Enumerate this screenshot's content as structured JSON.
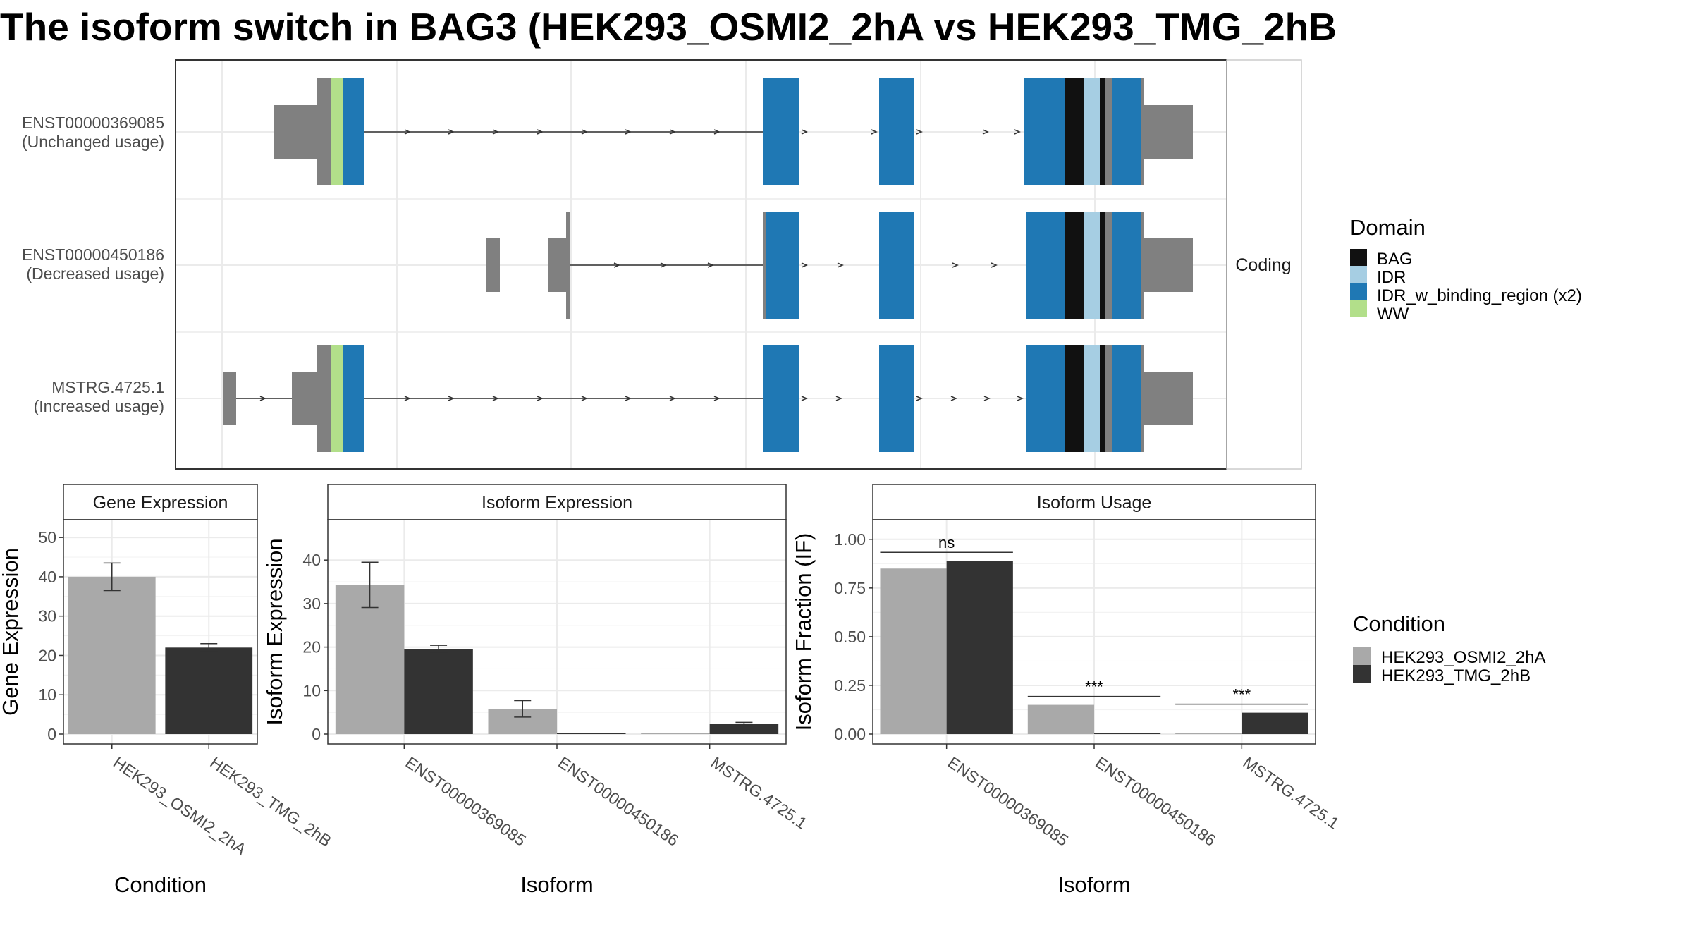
{
  "title": "The isoform switch in BAG3 (HEK293_OSMI2_2hA vs HEK293_TMG_2hB",
  "colors": {
    "BAG": "#111111",
    "IDR": "#a6cee3",
    "IDR_w_binding_region (x2)": "#1f78b4",
    "WW": "#b2df8a",
    "utr": "#808080",
    "HEK293_OSMI2_2hA": "#a9a9a9",
    "HEK293_TMG_2hB": "#333333"
  },
  "structure": {
    "strip_label": "Coding",
    "isoforms": [
      {
        "id": "ENST00000369085",
        "usage": "(Unchanged usage)"
      },
      {
        "id": "ENST00000450186",
        "usage": "(Decreased usage)"
      },
      {
        "id": "MSTRG.4725.1",
        "usage": "(Increased usage)"
      }
    ]
  },
  "legend_domain": {
    "title": "Domain",
    "items": [
      "BAG",
      "IDR",
      "IDR_w_binding_region (x2)",
      "WW"
    ]
  },
  "legend_condition": {
    "title": "Condition",
    "items": [
      "HEK293_OSMI2_2hA",
      "HEK293_TMG_2hB"
    ]
  },
  "chart_data": [
    {
      "type": "bar",
      "strip": "Gene Expression",
      "xlabel": "Condition",
      "ylabel": "Gene Expression",
      "ylim": [
        0,
        52
      ],
      "yticks": [
        0,
        10,
        20,
        30,
        40,
        50
      ],
      "categories": [
        "HEK293_OSMI2_2hA",
        "HEK293_TMG_2hB"
      ],
      "series": [
        {
          "name": "HEK293_OSMI2_2hA",
          "values": [
            40.0,
            null
          ],
          "errors": [
            3.5,
            null
          ]
        },
        {
          "name": "HEK293_TMG_2hB",
          "values": [
            null,
            22.0
          ],
          "errors": [
            null,
            1.0
          ]
        }
      ]
    },
    {
      "type": "bar",
      "strip": "Isoform Expression",
      "xlabel": "Isoform",
      "ylabel": "Isoform Expression",
      "ylim": [
        0,
        47
      ],
      "yticks": [
        0,
        10,
        20,
        30,
        40
      ],
      "categories": [
        "ENST00000369085",
        "ENST00000450186",
        "MSTRG.4725.1"
      ],
      "series": [
        {
          "name": "HEK293_OSMI2_2hA",
          "values": [
            34.3,
            5.8,
            0.1
          ],
          "errors": [
            5.2,
            1.9,
            0
          ]
        },
        {
          "name": "HEK293_TMG_2hB",
          "values": [
            19.6,
            0.1,
            2.4
          ],
          "errors": [
            0.8,
            0,
            0.3
          ]
        }
      ]
    },
    {
      "type": "bar",
      "strip": "Isoform Usage",
      "xlabel": "Isoform",
      "ylabel": "Isoform Fraction (IF)",
      "ylim": [
        0,
        1.05
      ],
      "yticks": [
        "0.00",
        "0.25",
        "0.50",
        "0.75",
        "1.00"
      ],
      "categories": [
        "ENST00000369085",
        "ENST00000450186",
        "MSTRG.4725.1"
      ],
      "series": [
        {
          "name": "HEK293_OSMI2_2hA",
          "values": [
            0.85,
            0.15,
            0.0
          ]
        },
        {
          "name": "HEK293_TMG_2hB",
          "values": [
            0.89,
            0.0,
            0.11
          ]
        }
      ],
      "significance": [
        "ns",
        "***",
        "***"
      ]
    }
  ]
}
